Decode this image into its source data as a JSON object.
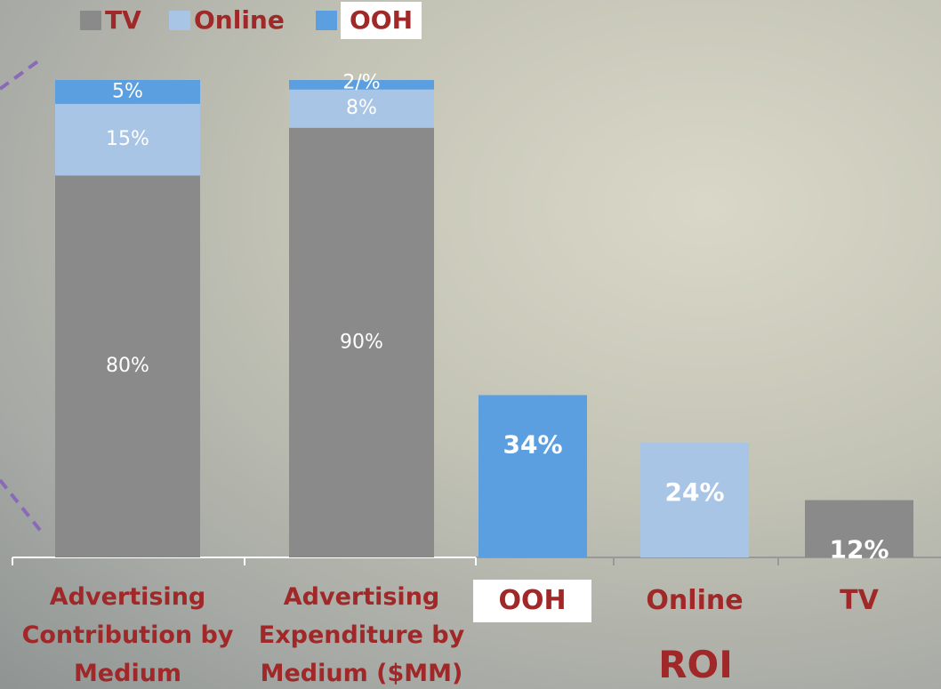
{
  "chart_data": [
    {
      "type": "stacked_bar",
      "categories": [
        "Advertising Contribution by Medium",
        "Advertising Expenditure by Medium ($MM)"
      ],
      "ylim": [
        0,
        100
      ],
      "series": [
        {
          "name": "TV",
          "color": "#8a8a8a",
          "values": [
            80,
            90
          ],
          "value_labels": [
            "80%",
            "90%"
          ]
        },
        {
          "name": "Online",
          "color": "#a9c5e6",
          "values": [
            15,
            8
          ],
          "value_labels": [
            "15%",
            "8%"
          ]
        },
        {
          "name": "OOH",
          "color": "#5c9fe0",
          "values": [
            5,
            2
          ],
          "value_labels": [
            "5%",
            "2/%"
          ]
        }
      ]
    },
    {
      "type": "bar",
      "title": "ROI",
      "categories": [
        "OOH",
        "Online",
        "TV"
      ],
      "values": [
        34,
        24,
        12
      ],
      "value_labels": [
        "34%",
        "24%",
        "12%"
      ],
      "colors": [
        "#5c9fe0",
        "#a9c5e6",
        "#8a8a8a"
      ],
      "ylim": [
        0,
        100
      ]
    }
  ]
}
